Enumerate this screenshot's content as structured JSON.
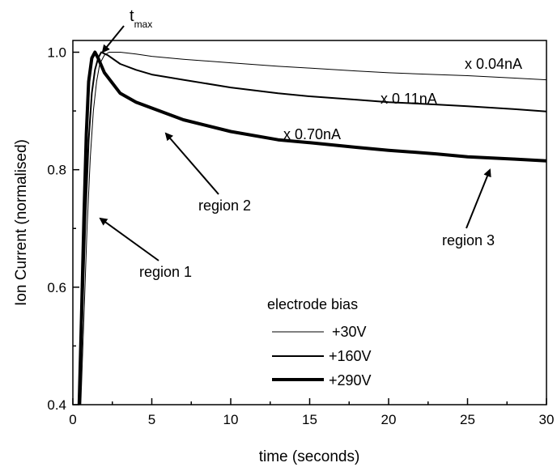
{
  "chart_data": {
    "type": "line",
    "title": "",
    "xlabel": "time (seconds)",
    "ylabel": "Ion Current (normalised)",
    "xlim": [
      0,
      30
    ],
    "ylim": [
      0.4,
      1.02
    ],
    "xticks": [
      0,
      5,
      10,
      15,
      20,
      25,
      30
    ],
    "yticks": [
      0.4,
      0.6,
      0.8,
      1.0
    ],
    "xtick_labels": [
      "0",
      "5",
      "10",
      "15",
      "20",
      "25",
      "30"
    ],
    "ytick_labels": [
      "0.4",
      "0.6",
      "0.8",
      "1.0"
    ],
    "grid": false,
    "legend": {
      "title": "electrode bias",
      "placement": "bottom-center",
      "entries": [
        "+30V",
        "+160V",
        "+290V"
      ]
    },
    "series": [
      {
        "name": "+30V",
        "scale_label": "x 0.04nA",
        "stroke_width": 1,
        "points": [
          [
            0.5,
            0.4
          ],
          [
            0.7,
            0.55
          ],
          [
            0.9,
            0.7
          ],
          [
            1.1,
            0.82
          ],
          [
            1.3,
            0.9
          ],
          [
            1.5,
            0.95
          ],
          [
            1.7,
            0.98
          ],
          [
            2,
            0.995
          ],
          [
            2.3,
            1.0
          ],
          [
            3,
            1.0
          ],
          [
            4,
            0.997
          ],
          [
            5,
            0.993
          ],
          [
            7,
            0.988
          ],
          [
            10,
            0.982
          ],
          [
            13,
            0.976
          ],
          [
            15,
            0.973
          ],
          [
            18,
            0.968
          ],
          [
            20,
            0.965
          ],
          [
            23,
            0.962
          ],
          [
            25,
            0.96
          ],
          [
            28,
            0.956
          ],
          [
            30,
            0.953
          ]
        ]
      },
      {
        "name": "+160V",
        "scale_label": "x 0.11nA",
        "stroke_width": 2,
        "points": [
          [
            0.45,
            0.4
          ],
          [
            0.6,
            0.55
          ],
          [
            0.8,
            0.72
          ],
          [
            1.0,
            0.85
          ],
          [
            1.2,
            0.93
          ],
          [
            1.4,
            0.97
          ],
          [
            1.6,
            0.99
          ],
          [
            1.8,
            1.0
          ],
          [
            2.2,
            0.995
          ],
          [
            3,
            0.98
          ],
          [
            4,
            0.97
          ],
          [
            5,
            0.962
          ],
          [
            7,
            0.953
          ],
          [
            10,
            0.94
          ],
          [
            13,
            0.93
          ],
          [
            15,
            0.925
          ],
          [
            18,
            0.919
          ],
          [
            20,
            0.915
          ],
          [
            23,
            0.911
          ],
          [
            25,
            0.908
          ],
          [
            28,
            0.903
          ],
          [
            30,
            0.899
          ]
        ]
      },
      {
        "name": "+290V",
        "scale_label": "x 0.70nA",
        "stroke_width": 4,
        "points": [
          [
            0.4,
            0.4
          ],
          [
            0.55,
            0.55
          ],
          [
            0.7,
            0.72
          ],
          [
            0.85,
            0.86
          ],
          [
            1.0,
            0.95
          ],
          [
            1.2,
            0.99
          ],
          [
            1.4,
            1.0
          ],
          [
            1.6,
            0.99
          ],
          [
            2,
            0.965
          ],
          [
            3,
            0.93
          ],
          [
            4,
            0.915
          ],
          [
            5,
            0.905
          ],
          [
            7,
            0.885
          ],
          [
            10,
            0.865
          ],
          [
            13,
            0.851
          ],
          [
            15,
            0.846
          ],
          [
            18,
            0.838
          ],
          [
            20,
            0.833
          ],
          [
            23,
            0.827
          ],
          [
            25,
            0.822
          ],
          [
            28,
            0.818
          ],
          [
            30,
            0.815
          ]
        ]
      }
    ],
    "annotations": [
      {
        "text": "t",
        "subscript": "max",
        "points_to": [
          1.5,
          1.0
        ]
      },
      {
        "text": "region 1",
        "points_to": [
          1.6,
          0.72
        ]
      },
      {
        "text": "region 2",
        "points_to": [
          5.8,
          0.905
        ]
      },
      {
        "text": "region 3",
        "points_to": [
          26.5,
          0.82
        ]
      }
    ]
  }
}
